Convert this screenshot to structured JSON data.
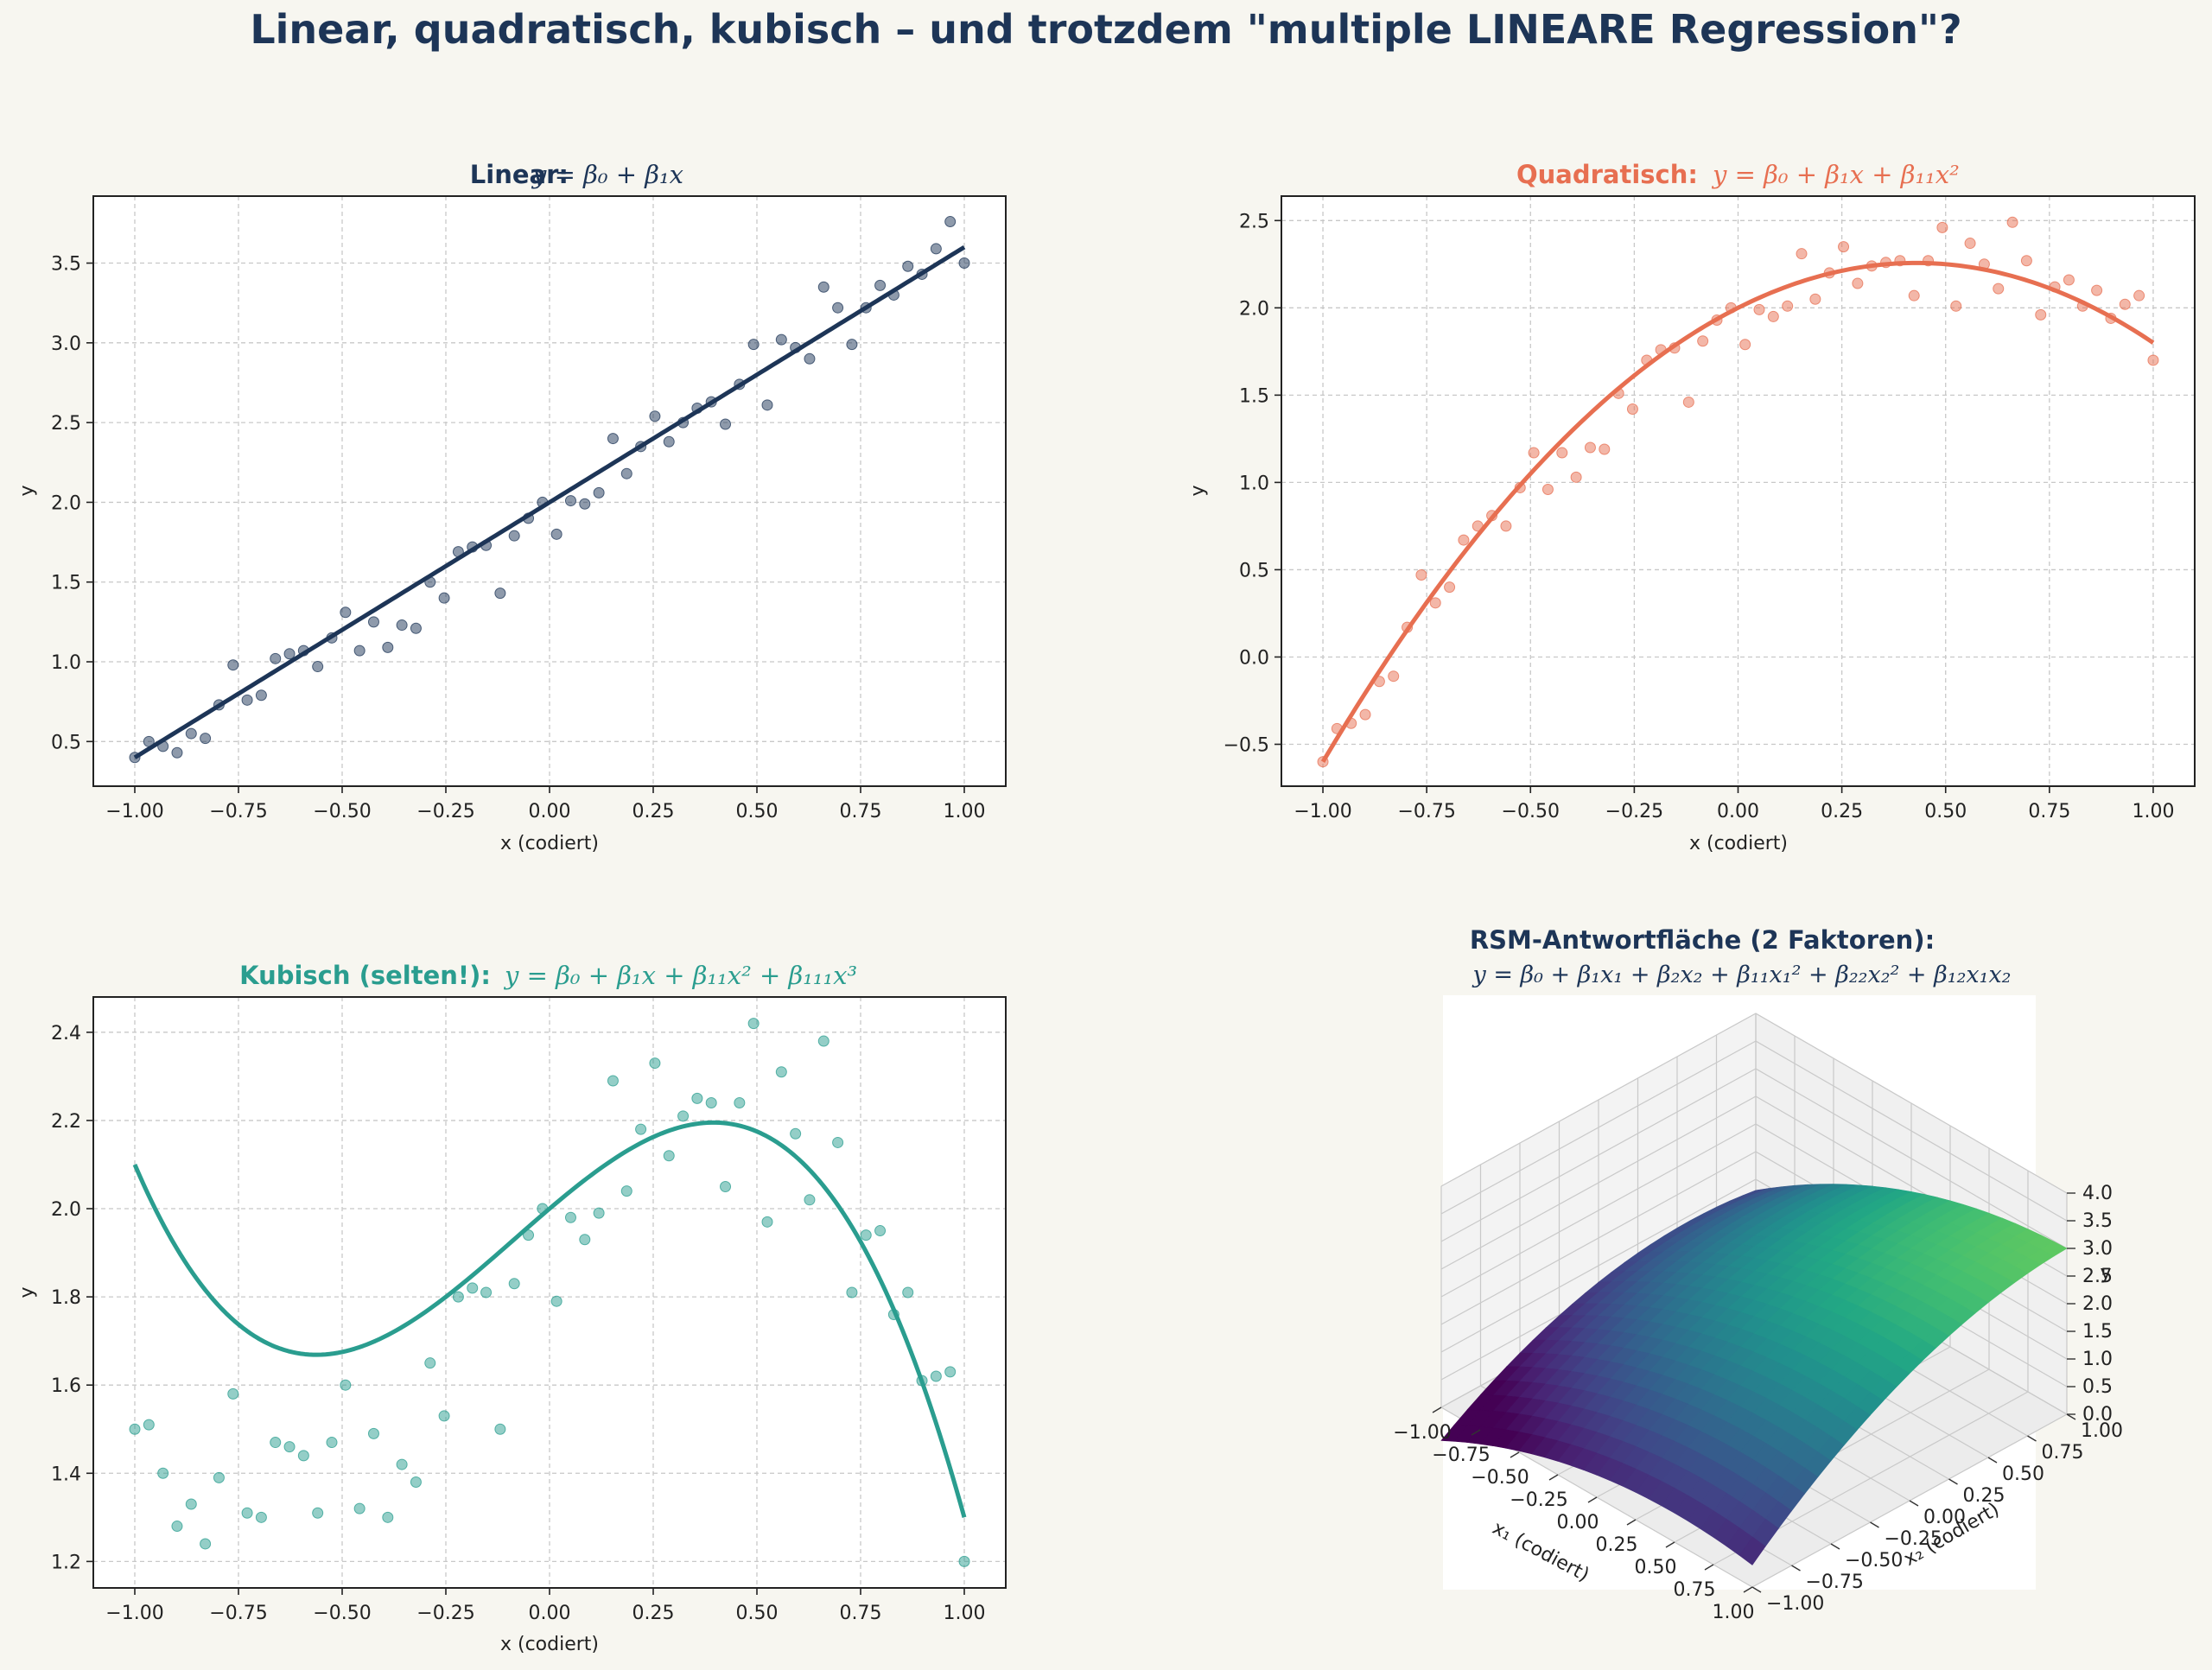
{
  "figure": {
    "title": "Linear, quadratisch, kubisch – und trotzdem \"multiple LINEARE Regression\"?"
  },
  "colors": {
    "background": "#f7f6f0",
    "title": "#1d3557",
    "linear": "#1d3557",
    "quadratic": "#e76f51",
    "cubic": "#2a9d8f",
    "grid": "#c8c8c8"
  },
  "chart_data": [
    {
      "type": "scatter",
      "title_prefix": "Linear:",
      "title_formula": "y = β₀ + β₁x",
      "xlabel": "x (codiert)",
      "ylabel": "y",
      "xlim": [
        -1.1,
        1.1
      ],
      "ylim": [
        0.22,
        3.92
      ],
      "xticks": [
        "−1.00",
        "−0.75",
        "−0.50",
        "−0.25",
        "0.00",
        "0.25",
        "0.50",
        "0.75",
        "1.00"
      ],
      "yticks": [
        "0.5",
        "1.0",
        "1.5",
        "2.0",
        "2.5",
        "3.0",
        "3.5"
      ],
      "ytick_values": [
        0.5,
        1.0,
        1.5,
        2.0,
        2.5,
        3.0,
        3.5
      ],
      "grid": true,
      "color": "#1d3557",
      "fit": {
        "model": "linear",
        "coefficients": [
          2.0,
          1.6
        ]
      },
      "points": [
        [
          -1.0,
          0.4
        ],
        [
          -0.966,
          0.5
        ],
        [
          -0.932,
          0.47
        ],
        [
          -0.898,
          0.43
        ],
        [
          -0.864,
          0.55
        ],
        [
          -0.83,
          0.52
        ],
        [
          -0.797,
          0.73
        ],
        [
          -0.763,
          0.98
        ],
        [
          -0.729,
          0.76
        ],
        [
          -0.695,
          0.79
        ],
        [
          -0.661,
          1.02
        ],
        [
          -0.627,
          1.05
        ],
        [
          -0.593,
          1.07
        ],
        [
          -0.559,
          0.97
        ],
        [
          -0.525,
          1.15
        ],
        [
          -0.492,
          1.31
        ],
        [
          -0.458,
          1.07
        ],
        [
          -0.424,
          1.25
        ],
        [
          -0.39,
          1.09
        ],
        [
          -0.356,
          1.23
        ],
        [
          -0.322,
          1.21
        ],
        [
          -0.288,
          1.5
        ],
        [
          -0.254,
          1.4
        ],
        [
          -0.22,
          1.69
        ],
        [
          -0.186,
          1.72
        ],
        [
          -0.153,
          1.73
        ],
        [
          -0.119,
          1.43
        ],
        [
          -0.085,
          1.79
        ],
        [
          -0.051,
          1.9
        ],
        [
          -0.017,
          2.0
        ],
        [
          0.017,
          1.8
        ],
        [
          0.051,
          2.01
        ],
        [
          0.085,
          1.99
        ],
        [
          0.119,
          2.06
        ],
        [
          0.153,
          2.4
        ],
        [
          0.186,
          2.18
        ],
        [
          0.22,
          2.35
        ],
        [
          0.254,
          2.54
        ],
        [
          0.288,
          2.38
        ],
        [
          0.322,
          2.5
        ],
        [
          0.356,
          2.59
        ],
        [
          0.39,
          2.63
        ],
        [
          0.424,
          2.49
        ],
        [
          0.458,
          2.74
        ],
        [
          0.492,
          2.99
        ],
        [
          0.525,
          2.61
        ],
        [
          0.559,
          3.02
        ],
        [
          0.593,
          2.97
        ],
        [
          0.627,
          2.9
        ],
        [
          0.661,
          3.35
        ],
        [
          0.695,
          3.22
        ],
        [
          0.729,
          2.99
        ],
        [
          0.763,
          3.22
        ],
        [
          0.797,
          3.36
        ],
        [
          0.83,
          3.3
        ],
        [
          0.864,
          3.48
        ],
        [
          0.898,
          3.43
        ],
        [
          0.932,
          3.59
        ],
        [
          0.966,
          3.76
        ],
        [
          1.0,
          3.5
        ]
      ]
    },
    {
      "type": "scatter",
      "title_prefix": "Quadratisch:",
      "title_formula": "y = β₀ + β₁x + β₁₁x²",
      "xlabel": "x (codiert)",
      "ylabel": "y",
      "xlim": [
        -1.1,
        1.1
      ],
      "ylim": [
        -0.74,
        2.64
      ],
      "xticks": [
        "−1.00",
        "−0.75",
        "−0.50",
        "−0.25",
        "0.00",
        "0.25",
        "0.50",
        "0.75",
        "1.00"
      ],
      "yticks": [
        "−0.5",
        "0.0",
        "0.5",
        "1.0",
        "1.5",
        "2.0",
        "2.5"
      ],
      "ytick_values": [
        -0.5,
        0.0,
        0.5,
        1.0,
        1.5,
        2.0,
        2.5
      ],
      "grid": true,
      "color": "#e76f51",
      "fit": {
        "model": "quadratic",
        "coefficients": [
          2.0,
          1.2,
          -1.4
        ]
      },
      "points": [
        [
          -1.0,
          -0.6
        ],
        [
          -0.966,
          -0.41
        ],
        [
          -0.932,
          -0.38
        ],
        [
          -0.898,
          -0.33
        ],
        [
          -0.864,
          -0.14
        ],
        [
          -0.83,
          -0.11
        ],
        [
          -0.797,
          0.17
        ],
        [
          -0.763,
          0.47
        ],
        [
          -0.729,
          0.31
        ],
        [
          -0.695,
          0.4
        ],
        [
          -0.661,
          0.67
        ],
        [
          -0.627,
          0.75
        ],
        [
          -0.593,
          0.81
        ],
        [
          -0.559,
          0.75
        ],
        [
          -0.525,
          0.97
        ],
        [
          -0.492,
          1.17
        ],
        [
          -0.458,
          0.96
        ],
        [
          -0.424,
          1.17
        ],
        [
          -0.39,
          1.03
        ],
        [
          -0.356,
          1.2
        ],
        [
          -0.322,
          1.19
        ],
        [
          -0.288,
          1.51
        ],
        [
          -0.254,
          1.42
        ],
        [
          -0.22,
          1.7
        ],
        [
          -0.186,
          1.76
        ],
        [
          -0.153,
          1.77
        ],
        [
          -0.119,
          1.46
        ],
        [
          -0.085,
          1.81
        ],
        [
          -0.051,
          1.93
        ],
        [
          -0.017,
          2.0
        ],
        [
          0.017,
          1.79
        ],
        [
          0.051,
          1.99
        ],
        [
          0.085,
          1.95
        ],
        [
          0.119,
          2.01
        ],
        [
          0.153,
          2.31
        ],
        [
          0.186,
          2.05
        ],
        [
          0.22,
          2.2
        ],
        [
          0.254,
          2.35
        ],
        [
          0.288,
          2.14
        ],
        [
          0.322,
          2.24
        ],
        [
          0.356,
          2.26
        ],
        [
          0.39,
          2.27
        ],
        [
          0.424,
          2.07
        ],
        [
          0.458,
          2.27
        ],
        [
          0.492,
          2.46
        ],
        [
          0.525,
          2.01
        ],
        [
          0.559,
          2.37
        ],
        [
          0.593,
          2.25
        ],
        [
          0.627,
          2.11
        ],
        [
          0.661,
          2.49
        ],
        [
          0.695,
          2.27
        ],
        [
          0.729,
          1.96
        ],
        [
          0.763,
          2.12
        ],
        [
          0.797,
          2.16
        ],
        [
          0.83,
          2.01
        ],
        [
          0.864,
          2.1
        ],
        [
          0.898,
          1.94
        ],
        [
          0.932,
          2.02
        ],
        [
          0.966,
          2.07
        ],
        [
          1.0,
          1.7
        ]
      ]
    },
    {
      "type": "scatter",
      "title_prefix": "Kubisch (selten!):",
      "title_formula": "y = β₀ + β₁x + β₁₁x² + β₁₁₁x³",
      "xlabel": "x (codiert)",
      "ylabel": "y",
      "xlim": [
        -1.1,
        1.1
      ],
      "ylim": [
        1.14,
        2.48
      ],
      "xticks": [
        "−1.00",
        "−0.75",
        "−0.50",
        "−0.25",
        "0.00",
        "0.25",
        "0.50",
        "0.75",
        "1.00"
      ],
      "yticks": [
        "1.2",
        "1.4",
        "1.6",
        "1.8",
        "2.0",
        "2.2",
        "2.4"
      ],
      "ytick_values": [
        1.2,
        1.4,
        1.6,
        1.8,
        2.0,
        2.2,
        2.4
      ],
      "grid": true,
      "color": "#2a9d8f",
      "fit": {
        "model": "cubic",
        "coefficients": [
          2.0,
          0.8,
          -0.3,
          -1.2
        ]
      },
      "points": [
        [
          -1.0,
          1.5
        ],
        [
          -0.966,
          1.51
        ],
        [
          -0.932,
          1.4
        ],
        [
          -0.898,
          1.28
        ],
        [
          -0.864,
          1.33
        ],
        [
          -0.83,
          1.24
        ],
        [
          -0.797,
          1.39
        ],
        [
          -0.763,
          1.58
        ],
        [
          -0.729,
          1.31
        ],
        [
          -0.695,
          1.3
        ],
        [
          -0.661,
          1.47
        ],
        [
          -0.627,
          1.46
        ],
        [
          -0.593,
          1.44
        ],
        [
          -0.559,
          1.31
        ],
        [
          -0.525,
          1.47
        ],
        [
          -0.492,
          1.6
        ],
        [
          -0.458,
          1.32
        ],
        [
          -0.424,
          1.49
        ],
        [
          -0.39,
          1.3
        ],
        [
          -0.356,
          1.42
        ],
        [
          -0.322,
          1.38
        ],
        [
          -0.288,
          1.65
        ],
        [
          -0.254,
          1.53
        ],
        [
          -0.22,
          1.8
        ],
        [
          -0.186,
          1.82
        ],
        [
          -0.153,
          1.81
        ],
        [
          -0.119,
          1.5
        ],
        [
          -0.085,
          1.83
        ],
        [
          -0.051,
          1.94
        ],
        [
          -0.017,
          2.0
        ],
        [
          0.017,
          1.79
        ],
        [
          0.051,
          1.98
        ],
        [
          0.085,
          1.93
        ],
        [
          0.119,
          1.99
        ],
        [
          0.153,
          2.29
        ],
        [
          0.186,
          2.04
        ],
        [
          0.22,
          2.18
        ],
        [
          0.254,
          2.33
        ],
        [
          0.288,
          2.12
        ],
        [
          0.322,
          2.21
        ],
        [
          0.356,
          2.25
        ],
        [
          0.39,
          2.24
        ],
        [
          0.424,
          2.05
        ],
        [
          0.458,
          2.24
        ],
        [
          0.492,
          2.42
        ],
        [
          0.525,
          1.97
        ],
        [
          0.559,
          2.31
        ],
        [
          0.593,
          2.17
        ],
        [
          0.627,
          2.02
        ],
        [
          0.661,
          2.38
        ],
        [
          0.695,
          2.15
        ],
        [
          0.729,
          1.81
        ],
        [
          0.763,
          1.94
        ],
        [
          0.797,
          1.95
        ],
        [
          0.83,
          1.76
        ],
        [
          0.864,
          1.81
        ],
        [
          0.898,
          1.61
        ],
        [
          0.932,
          1.62
        ],
        [
          0.966,
          1.63
        ],
        [
          1.0,
          1.2
        ]
      ]
    },
    {
      "type": "surface",
      "title_line1": "RSM-Antwortfläche (2 Faktoren):",
      "title_formula": "y = β₀ + β₁x₁ + β₂x₂ + β₁₁x₁² + β₂₂x₂² + β₁₂x₁x₂",
      "xlabel": "x₁ (codiert)",
      "ylabel": "x₂ (codiert)",
      "zlabel": "y",
      "xticks": [
        "−1.00",
        "−0.75",
        "−0.50",
        "−0.25",
        "0.00",
        "0.25",
        "0.50",
        "0.75",
        "1.00"
      ],
      "yticks": [
        "−1.00",
        "−0.75",
        "−0.50",
        "−0.25",
        "0.00",
        "0.25",
        "0.50",
        "0.75",
        "1.00"
      ],
      "zticks": [
        "0.0",
        "0.5",
        "1.0",
        "1.5",
        "2.0",
        "2.5",
        "3.0",
        "3.5",
        "4.0"
      ],
      "zlim": [
        0.0,
        4.0
      ],
      "colormap": "viridis",
      "model": {
        "b0": 2.0,
        "b1": 0.8,
        "b2": 1.0,
        "b11": -0.5,
        "b22": -0.6,
        "b12": 0.3
      }
    }
  ]
}
